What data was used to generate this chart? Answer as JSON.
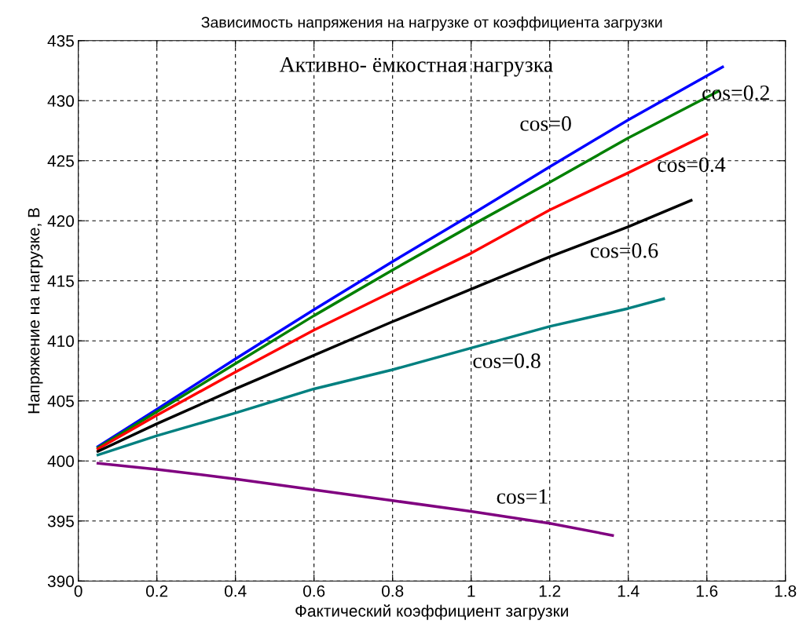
{
  "chart_data": {
    "type": "line",
    "title": "Зависимость напряжения на нагрузке от коэффициента загрузки",
    "xlabel": "Фактический коэффициент загрузки",
    "ylabel": "Напряжение на нагрузке, В",
    "xlim": [
      0,
      1.8
    ],
    "xticks": [
      0,
      0.2,
      0.4,
      0.6,
      0.8,
      1,
      1.2,
      1.4,
      1.6,
      1.8
    ],
    "ylim": [
      390,
      435
    ],
    "yticks": [
      390,
      395,
      400,
      405,
      410,
      415,
      420,
      425,
      430,
      435
    ],
    "grid": true,
    "line_style": "solid",
    "marker": "none",
    "series": [
      {
        "color": "#0000ff",
        "x": [
          0.05,
          0.2,
          0.4,
          0.6,
          0.8,
          1.0,
          1.2,
          1.4,
          1.64
        ],
        "values": [
          401.2,
          404.3,
          408.5,
          412.6,
          416.6,
          420.5,
          424.5,
          428.4,
          432.8
        ]
      },
      {
        "color": "#008000",
        "x": [
          0.05,
          0.2,
          0.4,
          0.6,
          0.8,
          1.0,
          1.2,
          1.4,
          1.63
        ],
        "values": [
          401.1,
          404.1,
          408.1,
          412.1,
          415.9,
          419.6,
          423.2,
          426.9,
          430.8
        ]
      },
      {
        "color": "#ff0000",
        "x": [
          0.05,
          0.2,
          0.4,
          0.6,
          0.8,
          1.0,
          1.2,
          1.4,
          1.6
        ],
        "values": [
          401.0,
          403.8,
          407.4,
          410.9,
          414.1,
          417.3,
          420.9,
          424.0,
          427.2
        ]
      },
      {
        "color": "#000000",
        "x": [
          0.05,
          0.2,
          0.4,
          0.6,
          0.8,
          1.0,
          1.2,
          1.4,
          1.56
        ],
        "values": [
          400.8,
          403.1,
          406.0,
          408.8,
          411.6,
          414.3,
          417.0,
          419.5,
          421.7
        ]
      },
      {
        "color": "#008080",
        "x": [
          0.05,
          0.2,
          0.4,
          0.6,
          0.8,
          1.0,
          1.2,
          1.4,
          1.49
        ],
        "values": [
          400.5,
          402.1,
          404.0,
          406.0,
          407.6,
          409.4,
          411.2,
          412.7,
          413.5
        ]
      },
      {
        "color": "#800080",
        "x": [
          0.05,
          0.2,
          0.4,
          0.6,
          0.8,
          1.0,
          1.2,
          1.36
        ],
        "values": [
          399.8,
          399.3,
          398.5,
          397.6,
          396.7,
          395.8,
          394.8,
          393.8
        ]
      }
    ],
    "annotations": [
      "Активно- ёмкостная нагрузка",
      "cos=0",
      "cos=0.2",
      "cos=0.4",
      "cos=0.6",
      "cos=0.8",
      "cos=1"
    ]
  }
}
